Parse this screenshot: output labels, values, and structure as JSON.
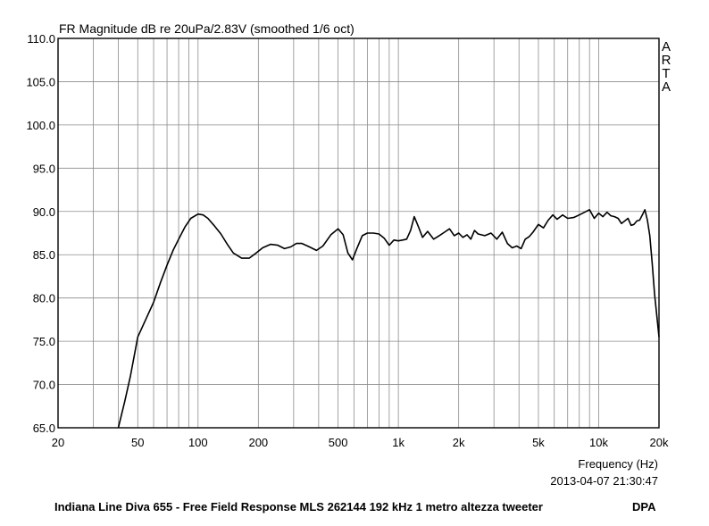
{
  "chart_data": {
    "type": "line",
    "title": "FR Magnitude dB re 20uPa/2.83V (smoothed 1/6 oct)",
    "xlabel": "Frequency (Hz)",
    "xscale": "log",
    "xlim": [
      20,
      20000
    ],
    "ylim": [
      65,
      110
    ],
    "grid": true,
    "x_ticks": [
      {
        "value": 20,
        "label": "20"
      },
      {
        "value": 50,
        "label": "50"
      },
      {
        "value": 100,
        "label": "100"
      },
      {
        "value": 200,
        "label": "200"
      },
      {
        "value": 500,
        "label": "500"
      },
      {
        "value": 1000,
        "label": "1k"
      },
      {
        "value": 2000,
        "label": "2k"
      },
      {
        "value": 5000,
        "label": "5k"
      },
      {
        "value": 10000,
        "label": "10k"
      },
      {
        "value": 20000,
        "label": "20k"
      }
    ],
    "y_ticks": [
      {
        "value": 65,
        "label": "65.0"
      },
      {
        "value": 70,
        "label": "70.0"
      },
      {
        "value": 75,
        "label": "75.0"
      },
      {
        "value": 80,
        "label": "80.0"
      },
      {
        "value": 85,
        "label": "85.0"
      },
      {
        "value": 90,
        "label": "90.0"
      },
      {
        "value": 95,
        "label": "95.0"
      },
      {
        "value": 100,
        "label": "100.0"
      },
      {
        "value": 105,
        "label": "105.0"
      },
      {
        "value": 110,
        "label": "110.0"
      }
    ],
    "series": [
      {
        "x": [
          40,
          43,
          46,
          50,
          55,
          60,
          65,
          70,
          75,
          80,
          86,
          92,
          100,
          106,
          112,
          120,
          130,
          140,
          150,
          165,
          180,
          195,
          210,
          230,
          250,
          270,
          290,
          310,
          330,
          360,
          390,
          420,
          460,
          500,
          530,
          560,
          590,
          620,
          660,
          700,
          750,
          800,
          850,
          900,
          950,
          1000,
          1050,
          1100,
          1150,
          1200,
          1260,
          1320,
          1400,
          1500,
          1600,
          1700,
          1800,
          1900,
          2000,
          2100,
          2200,
          2300,
          2400,
          2500,
          2700,
          2900,
          3100,
          3300,
          3500,
          3700,
          3900,
          4100,
          4300,
          4500,
          4700,
          5000,
          5300,
          5600,
          5900,
          6200,
          6600,
          7000,
          7500,
          8000,
          8500,
          9000,
          9500,
          10000,
          10500,
          11000,
          11500,
          12000,
          12500,
          13000,
          13500,
          14000,
          14500,
          15000,
          15500,
          16000,
          16500,
          17000,
          17500,
          18000,
          18500,
          19000,
          19500,
          20000
        ],
        "y": [
          65,
          68,
          71,
          75.5,
          77.6,
          79.5,
          81.8,
          83.8,
          85.5,
          86.8,
          88.2,
          89.2,
          89.7,
          89.6,
          89.2,
          88.4,
          87.4,
          86.2,
          85.2,
          84.6,
          84.6,
          85.2,
          85.8,
          86.2,
          86.1,
          85.7,
          85.9,
          86.3,
          86.3,
          85.9,
          85.5,
          86.0,
          87.3,
          88.0,
          87.3,
          85.2,
          84.4,
          85.7,
          87.2,
          87.5,
          87.5,
          87.4,
          86.9,
          86.1,
          86.7,
          86.6,
          86.7,
          86.8,
          87.8,
          89.4,
          88.2,
          87.0,
          87.7,
          86.8,
          87.2,
          87.6,
          88.0,
          87.2,
          87.5,
          87.0,
          87.3,
          86.8,
          87.8,
          87.4,
          87.2,
          87.5,
          86.8,
          87.6,
          86.3,
          85.8,
          86.0,
          85.7,
          86.8,
          87.1,
          87.6,
          88.5,
          88.1,
          89.0,
          89.6,
          89.1,
          89.6,
          89.2,
          89.3,
          89.6,
          89.9,
          90.2,
          89.2,
          89.8,
          89.4,
          89.9,
          89.5,
          89.4,
          89.2,
          88.6,
          88.9,
          89.2,
          88.4,
          88.5,
          88.9,
          89.0,
          89.6,
          90.2,
          89.0,
          87.2,
          84.0,
          80.5,
          78.0,
          75.5
        ]
      }
    ]
  },
  "side_label": [
    "A",
    "R",
    "T",
    "A"
  ],
  "footer": {
    "timestamp": "2013-04-07  21:30:47",
    "caption": "Indiana Line Diva 655 - Free Field Response MLS 262144 192 kHz 1 metro altezza tweeter",
    "tag": "DPA"
  }
}
